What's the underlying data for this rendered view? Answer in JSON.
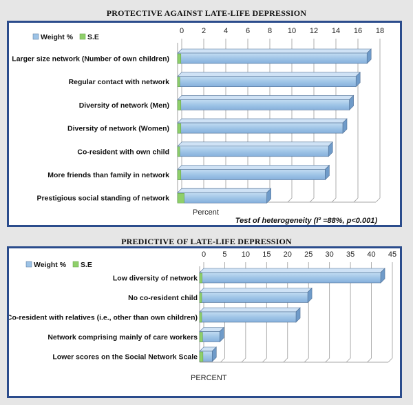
{
  "panels": [
    {
      "title": "PROTECTIVE AGAINST LATE-LIFE DEPRESSION",
      "legend": [
        "Weight %",
        "S.E"
      ],
      "axis_title": "Percent",
      "note": "Test of heterogeneity (I² =88%, p<0.001)",
      "colors": {
        "bar": "#9dc3e6",
        "bar_dark": "#6f9bc9",
        "se": "#8fcf6a",
        "frame": "#2b4c8c"
      }
    },
    {
      "title": "PREDICTIVE OF LATE-LIFE DEPRESSION",
      "legend": [
        "Weight %",
        "S.E"
      ],
      "axis_title": "PERCENT",
      "colors": {
        "bar": "#9dc3e6",
        "bar_dark": "#6f9bc9",
        "se": "#8fcf6a",
        "frame": "#2b4c8c"
      }
    }
  ],
  "chart_data": [
    {
      "type": "bar",
      "orientation": "horizontal",
      "title": "PROTECTIVE AGAINST LATE-LIFE DEPRESSION",
      "xlabel": "Percent",
      "xlim": [
        0,
        18
      ],
      "ticks": [
        0,
        2,
        4,
        6,
        8,
        10,
        12,
        14,
        16,
        18
      ],
      "categories": [
        "Larger size network (Number of own children)",
        "Regular contact with network",
        "Diversity of network (Men)",
        "Diversity of network (Women)",
        "Co-resident with own child",
        "More friends than family in network",
        "Prestigious social standing of network"
      ],
      "series": [
        {
          "name": "Weight %",
          "values": [
            17.2,
            16.2,
            15.6,
            15.0,
            13.7,
            13.4,
            8.1
          ]
        },
        {
          "name": "S.E",
          "values": [
            0.3,
            0.2,
            0.3,
            0.3,
            0.2,
            0.3,
            0.6
          ]
        }
      ],
      "legend": "top-left",
      "grid": true
    },
    {
      "type": "bar",
      "orientation": "horizontal",
      "title": "PREDICTIVE OF LATE-LIFE DEPRESSION",
      "xlabel": "PERCENT",
      "xlim": [
        0,
        45
      ],
      "ticks": [
        0,
        5,
        10,
        15,
        20,
        25,
        30,
        35,
        40,
        45
      ],
      "categories": [
        "Low diversity of network",
        "No co-resident child",
        "Co-resident with relatives (i.e., other than own children)",
        "Network comprising mainly of care workers",
        "Lower scores on the Social Network Scale"
      ],
      "series": [
        {
          "name": "Weight %",
          "values": [
            43.2,
            25.8,
            23.0,
            4.8,
            3.0
          ]
        },
        {
          "name": "S.E",
          "values": [
            0.6,
            0.5,
            0.5,
            0.7,
            0.8
          ]
        }
      ],
      "legend": "top-left",
      "grid": true
    }
  ]
}
